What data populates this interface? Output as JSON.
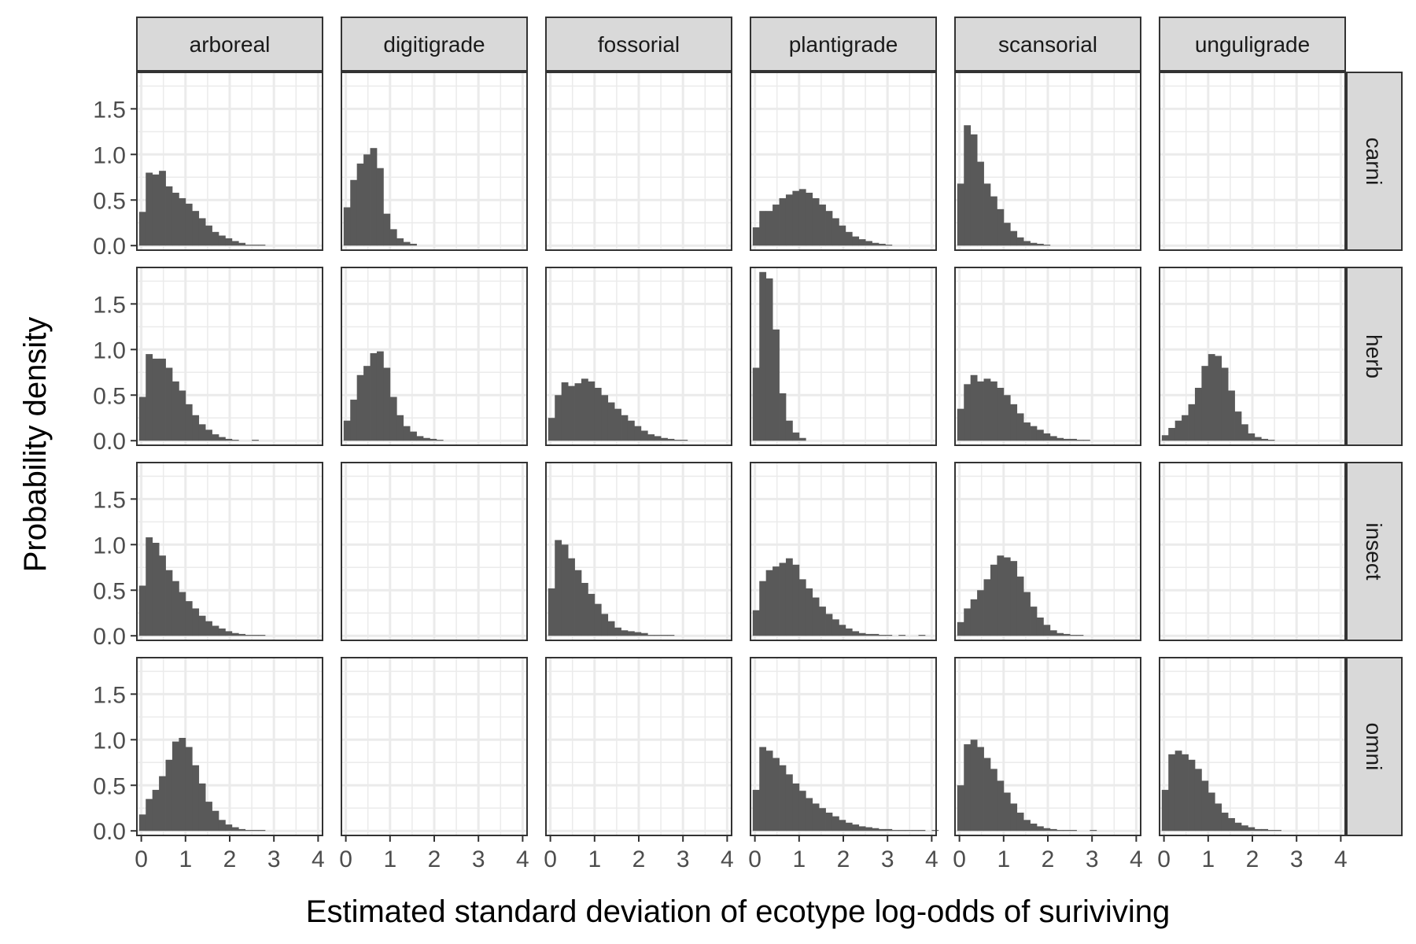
{
  "chart_data": {
    "type": "histogram",
    "xlabel": "Estimated standard deviation of ecotype log-odds of suriviving",
    "ylabel": "Probability density",
    "columns": [
      "arboreal",
      "digitigrade",
      "fossorial",
      "plantigrade",
      "scansorial",
      "unguligrade"
    ],
    "rows": [
      "carni",
      "herb",
      "insect",
      "omni"
    ],
    "xlim": [
      -0.1,
      4.1
    ],
    "ylim": [
      -0.05,
      1.9
    ],
    "x_ticks": [
      0,
      1,
      2,
      3,
      4
    ],
    "y_ticks": [
      0.0,
      0.5,
      1.0,
      1.5
    ],
    "x_tick_labels": [
      "0",
      "1",
      "2",
      "3",
      "4"
    ],
    "y_tick_labels": [
      "0.0",
      "0.5",
      "1.0",
      "1.5"
    ],
    "bin_width": 0.15,
    "bin_start": -0.05,
    "grid": true,
    "bar_color": "#595959",
    "panels": [
      {
        "row": "carni",
        "col": "arboreal",
        "values": [
          0.37,
          0.8,
          0.78,
          0.82,
          0.65,
          0.58,
          0.52,
          0.46,
          0.38,
          0.3,
          0.22,
          0.15,
          0.11,
          0.08,
          0.05,
          0.03,
          0.01,
          0.01,
          0.01
        ]
      },
      {
        "row": "carni",
        "col": "digitigrade",
        "values": [
          0.42,
          0.72,
          0.9,
          1.0,
          1.07,
          0.85,
          0.35,
          0.18,
          0.08,
          0.04,
          0.02
        ]
      },
      {
        "row": "carni",
        "col": "fossorial",
        "values": []
      },
      {
        "row": "carni",
        "col": "plantigrade",
        "values": [
          0.2,
          0.38,
          0.38,
          0.45,
          0.52,
          0.56,
          0.6,
          0.62,
          0.58,
          0.52,
          0.45,
          0.38,
          0.3,
          0.22,
          0.15,
          0.1,
          0.07,
          0.05,
          0.03,
          0.02,
          0.01
        ]
      },
      {
        "row": "carni",
        "col": "scansorial",
        "values": [
          0.68,
          1.32,
          1.22,
          0.92,
          0.68,
          0.54,
          0.4,
          0.25,
          0.16,
          0.09,
          0.05,
          0.03,
          0.02,
          0.01
        ]
      },
      {
        "row": "carni",
        "col": "unguligrade",
        "values": []
      },
      {
        "row": "herb",
        "col": "arboreal",
        "values": [
          0.48,
          0.95,
          0.9,
          0.9,
          0.8,
          0.65,
          0.55,
          0.4,
          0.28,
          0.18,
          0.12,
          0.07,
          0.04,
          0.02,
          0.01,
          0.0,
          0.0,
          0.01
        ]
      },
      {
        "row": "herb",
        "col": "digitigrade",
        "values": [
          0.22,
          0.45,
          0.72,
          0.82,
          0.96,
          0.98,
          0.8,
          0.48,
          0.28,
          0.16,
          0.1,
          0.05,
          0.03,
          0.02,
          0.01
        ]
      },
      {
        "row": "herb",
        "col": "fossorial",
        "values": [
          0.25,
          0.5,
          0.64,
          0.6,
          0.63,
          0.68,
          0.65,
          0.58,
          0.5,
          0.42,
          0.35,
          0.28,
          0.22,
          0.16,
          0.11,
          0.07,
          0.05,
          0.03,
          0.02,
          0.01,
          0.01
        ]
      },
      {
        "row": "herb",
        "col": "plantigrade",
        "values": [
          0.8,
          1.85,
          1.78,
          1.22,
          0.52,
          0.22,
          0.09,
          0.03
        ]
      },
      {
        "row": "herb",
        "col": "scansorial",
        "values": [
          0.35,
          0.62,
          0.72,
          0.65,
          0.68,
          0.65,
          0.58,
          0.5,
          0.4,
          0.3,
          0.2,
          0.16,
          0.12,
          0.08,
          0.05,
          0.03,
          0.02,
          0.02,
          0.01,
          0.01
        ]
      },
      {
        "row": "herb",
        "col": "unguligrade",
        "values": [
          0.06,
          0.14,
          0.22,
          0.28,
          0.4,
          0.58,
          0.82,
          0.95,
          0.93,
          0.8,
          0.55,
          0.32,
          0.18,
          0.08,
          0.04,
          0.02,
          0.01
        ]
      },
      {
        "row": "insect",
        "col": "arboreal",
        "values": [
          0.55,
          1.08,
          1.02,
          0.88,
          0.72,
          0.6,
          0.48,
          0.38,
          0.3,
          0.22,
          0.16,
          0.11,
          0.08,
          0.05,
          0.03,
          0.02,
          0.01,
          0.01,
          0.01
        ]
      },
      {
        "row": "insect",
        "col": "digitigrade",
        "values": []
      },
      {
        "row": "insect",
        "col": "fossorial",
        "values": [
          0.52,
          1.05,
          1.0,
          0.85,
          0.72,
          0.58,
          0.46,
          0.35,
          0.24,
          0.16,
          0.09,
          0.06,
          0.05,
          0.04,
          0.03,
          0.01,
          0.01,
          0.01,
          0.01
        ]
      },
      {
        "row": "insect",
        "col": "plantigrade",
        "values": [
          0.28,
          0.6,
          0.72,
          0.76,
          0.8,
          0.85,
          0.78,
          0.62,
          0.52,
          0.42,
          0.32,
          0.24,
          0.18,
          0.12,
          0.08,
          0.05,
          0.03,
          0.02,
          0.02,
          0.01,
          0.01,
          0.0,
          0.01,
          0.0,
          0.0,
          0.01
        ]
      },
      {
        "row": "insect",
        "col": "scansorial",
        "values": [
          0.15,
          0.3,
          0.4,
          0.5,
          0.62,
          0.78,
          0.88,
          0.86,
          0.82,
          0.65,
          0.48,
          0.32,
          0.2,
          0.12,
          0.06,
          0.03,
          0.02,
          0.01,
          0.01
        ]
      },
      {
        "row": "insect",
        "col": "unguligrade",
        "values": []
      },
      {
        "row": "omni",
        "col": "arboreal",
        "values": [
          0.18,
          0.35,
          0.45,
          0.6,
          0.78,
          0.98,
          1.02,
          0.92,
          0.72,
          0.52,
          0.32,
          0.22,
          0.12,
          0.07,
          0.04,
          0.02,
          0.01,
          0.01,
          0.01
        ]
      },
      {
        "row": "omni",
        "col": "digitigrade",
        "values": []
      },
      {
        "row": "omni",
        "col": "fossorial",
        "values": []
      },
      {
        "row": "omni",
        "col": "plantigrade",
        "values": [
          0.45,
          0.92,
          0.88,
          0.8,
          0.72,
          0.62,
          0.52,
          0.44,
          0.36,
          0.3,
          0.25,
          0.2,
          0.16,
          0.12,
          0.09,
          0.07,
          0.05,
          0.04,
          0.03,
          0.02,
          0.02,
          0.01,
          0.01,
          0.01,
          0.01,
          0.01,
          0.0,
          0.01
        ]
      },
      {
        "row": "omni",
        "col": "scansorial",
        "values": [
          0.5,
          0.95,
          1.0,
          0.92,
          0.8,
          0.68,
          0.55,
          0.42,
          0.3,
          0.2,
          0.12,
          0.08,
          0.05,
          0.03,
          0.02,
          0.01,
          0.01,
          0.01,
          0.0,
          0.0,
          0.01
        ]
      },
      {
        "row": "omni",
        "col": "unguligrade",
        "values": [
          0.45,
          0.84,
          0.88,
          0.84,
          0.78,
          0.68,
          0.55,
          0.42,
          0.3,
          0.2,
          0.14,
          0.09,
          0.06,
          0.04,
          0.02,
          0.02,
          0.01,
          0.01
        ]
      }
    ]
  }
}
